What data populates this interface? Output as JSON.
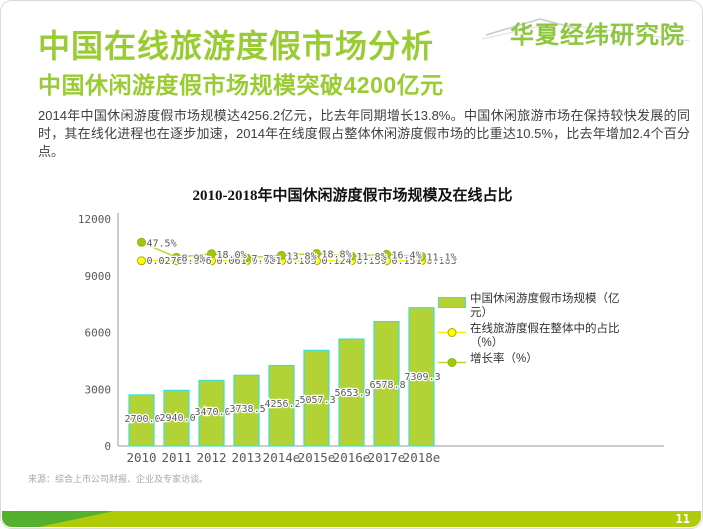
{
  "header": {
    "logo": "华夏经纬研究院",
    "title": "中国在线旅游度假市场分析",
    "subtitle": "中国休闲游度假市场规模突破4200亿元",
    "paragraph": "2014年中国休闲游度假市场规模达4256.2亿元，比去年同期增长13.8%。中国休闲旅游市场在保持较快发展的同时，其在线化进程也在逐步加速，2014年在线度假占整体休闲游度假市场的比重达10.5%，比去年增加2.4个百分点。"
  },
  "chart_data": {
    "type": "bar",
    "title": "2010-2018年中国休闲游度假市场规模及在线占比",
    "categories": [
      "2010",
      "2011",
      "2012",
      "2013",
      "2014e",
      "2015e",
      "2016e",
      "2017e",
      "2018e"
    ],
    "series": [
      {
        "name": "中国休闲游度假市场规模（亿元）",
        "kind": "bar",
        "values": [
          2700.0,
          2940.0,
          3470.0,
          3738.5,
          4256.2,
          5057.3,
          5653.9,
          6578.8,
          7309.3
        ],
        "labels": [
          "2700.0",
          "2940.0",
          "3470.0",
          "3738.5",
          "4256.2",
          "5057.3",
          "5653.9",
          "6578.8",
          "7309.3"
        ]
      },
      {
        "name": "在线旅游度假在整体中的占比（%）",
        "kind": "line",
        "values": [
          0.0276,
          0.046,
          0.061,
          0.081,
          0.105,
          0.124,
          0.139,
          0.151,
          0.163
        ],
        "labels": [
          "0.0276",
          "0.046",
          "0.061",
          "0.081",
          "0.105",
          "0.124",
          "0.139",
          "0.151",
          "0.163"
        ]
      },
      {
        "name": "增长率（%）",
        "kind": "line",
        "values": [
          47.5,
          8.9,
          18.0,
          7.7,
          13.8,
          18.8,
          11.8,
          16.4,
          11.1
        ],
        "labels": [
          "47.5%",
          "8.9%",
          "18.0%",
          "7.7%",
          "13.8%",
          "18.8%",
          "11.8%",
          "16.4%",
          "11.1%"
        ]
      }
    ],
    "ylim": [
      0,
      12000
    ],
    "yticks": [
      0,
      3000,
      6000,
      9000,
      12000
    ],
    "grid": false,
    "legend_position": "right"
  },
  "colors": {
    "title_green": "#99CC33",
    "logo_green": "#8DC63F",
    "bar_fill": "#B2D235",
    "bar_border": "#3FE0CE",
    "line_yellow": "#F2F200",
    "marker_yellow": "#FFFF00",
    "marker_yellow_stroke": "#ABAB00",
    "line_green": "#BCD532",
    "marker_green": "#9FC813",
    "axis_gray": "#999999",
    "text_gray": "#595959",
    "footer_bar": "#AFCB08",
    "footer_accent": "#55B02F"
  },
  "footer": {
    "source": "来源：综合上市公司财报、企业及专家访谈。",
    "page": "11"
  }
}
